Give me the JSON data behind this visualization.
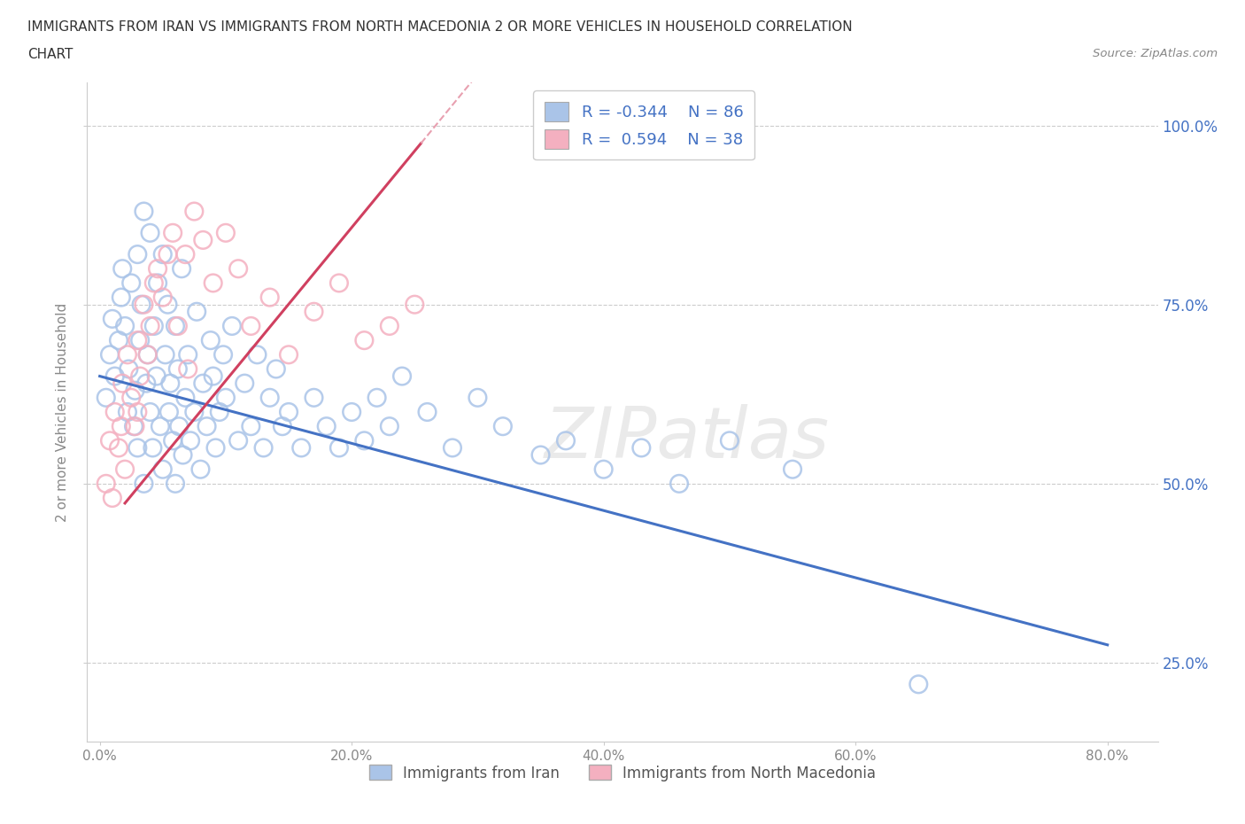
{
  "title_line1": "IMMIGRANTS FROM IRAN VS IMMIGRANTS FROM NORTH MACEDONIA 2 OR MORE VEHICLES IN HOUSEHOLD CORRELATION",
  "title_line2": "CHART",
  "source_text": "Source: ZipAtlas.com",
  "ylabel_label": "2 or more Vehicles in Household",
  "legend_iran_R": "-0.344",
  "legend_iran_N": "86",
  "legend_mac_R": "0.594",
  "legend_mac_N": "38",
  "legend_label_iran": "Immigrants from Iran",
  "legend_label_mac": "Immigrants from North Macedonia",
  "watermark": "ZIPatlas",
  "iran_color": "#aac4e8",
  "mac_color": "#f4b0c0",
  "iran_line_color": "#4472c4",
  "mac_line_color": "#d04060",
  "mac_line_dashed_color": "#e8a0b0",
  "xlim": [
    -0.01,
    0.84
  ],
  "ylim": [
    0.14,
    1.06
  ],
  "x_ticks": [
    0.0,
    0.2,
    0.4,
    0.6,
    0.8
  ],
  "y_ticks": [
    0.25,
    0.5,
    0.75,
    1.0
  ],
  "iran_trend_x": [
    0.0,
    0.8
  ],
  "iran_trend_y": [
    0.65,
    0.275
  ],
  "mac_trend_x": [
    0.0,
    0.255
  ],
  "mac_trend_y": [
    0.43,
    0.975
  ],
  "background_color": "#ffffff",
  "grid_color": "#cccccc",
  "title_color": "#333333",
  "axis_color": "#888888",
  "iran_scatter_x": [
    0.005,
    0.008,
    0.01,
    0.012,
    0.015,
    0.017,
    0.018,
    0.02,
    0.022,
    0.023,
    0.025,
    0.027,
    0.028,
    0.03,
    0.03,
    0.032,
    0.033,
    0.035,
    0.035,
    0.037,
    0.038,
    0.04,
    0.04,
    0.042,
    0.043,
    0.045,
    0.046,
    0.048,
    0.05,
    0.05,
    0.052,
    0.054,
    0.055,
    0.056,
    0.058,
    0.06,
    0.06,
    0.062,
    0.063,
    0.065,
    0.066,
    0.068,
    0.07,
    0.072,
    0.075,
    0.077,
    0.08,
    0.082,
    0.085,
    0.088,
    0.09,
    0.092,
    0.095,
    0.098,
    0.1,
    0.105,
    0.11,
    0.115,
    0.12,
    0.125,
    0.13,
    0.135,
    0.14,
    0.145,
    0.15,
    0.16,
    0.17,
    0.18,
    0.19,
    0.2,
    0.21,
    0.22,
    0.23,
    0.24,
    0.26,
    0.28,
    0.3,
    0.32,
    0.35,
    0.37,
    0.4,
    0.43,
    0.46,
    0.5,
    0.55,
    0.65
  ],
  "iran_scatter_y": [
    0.62,
    0.68,
    0.73,
    0.65,
    0.7,
    0.76,
    0.8,
    0.72,
    0.6,
    0.66,
    0.78,
    0.58,
    0.63,
    0.82,
    0.55,
    0.7,
    0.75,
    0.88,
    0.5,
    0.64,
    0.68,
    0.85,
    0.6,
    0.55,
    0.72,
    0.65,
    0.78,
    0.58,
    0.82,
    0.52,
    0.68,
    0.75,
    0.6,
    0.64,
    0.56,
    0.72,
    0.5,
    0.66,
    0.58,
    0.8,
    0.54,
    0.62,
    0.68,
    0.56,
    0.6,
    0.74,
    0.52,
    0.64,
    0.58,
    0.7,
    0.65,
    0.55,
    0.6,
    0.68,
    0.62,
    0.72,
    0.56,
    0.64,
    0.58,
    0.68,
    0.55,
    0.62,
    0.66,
    0.58,
    0.6,
    0.55,
    0.62,
    0.58,
    0.55,
    0.6,
    0.56,
    0.62,
    0.58,
    0.65,
    0.6,
    0.55,
    0.62,
    0.58,
    0.54,
    0.56,
    0.52,
    0.55,
    0.5,
    0.56,
    0.52,
    0.22
  ],
  "mac_scatter_x": [
    0.005,
    0.008,
    0.01,
    0.012,
    0.015,
    0.017,
    0.018,
    0.02,
    0.022,
    0.025,
    0.028,
    0.03,
    0.032,
    0.035,
    0.038,
    0.04,
    0.043,
    0.046,
    0.05,
    0.054,
    0.058,
    0.062,
    0.068,
    0.075,
    0.082,
    0.09,
    0.1,
    0.11,
    0.12,
    0.135,
    0.15,
    0.17,
    0.19,
    0.21,
    0.23,
    0.25,
    0.03,
    0.07
  ],
  "mac_scatter_y": [
    0.5,
    0.56,
    0.48,
    0.6,
    0.55,
    0.58,
    0.64,
    0.52,
    0.68,
    0.62,
    0.58,
    0.7,
    0.65,
    0.75,
    0.68,
    0.72,
    0.78,
    0.8,
    0.76,
    0.82,
    0.85,
    0.72,
    0.82,
    0.88,
    0.84,
    0.78,
    0.85,
    0.8,
    0.72,
    0.76,
    0.68,
    0.74,
    0.78,
    0.7,
    0.72,
    0.75,
    0.6,
    0.66
  ]
}
